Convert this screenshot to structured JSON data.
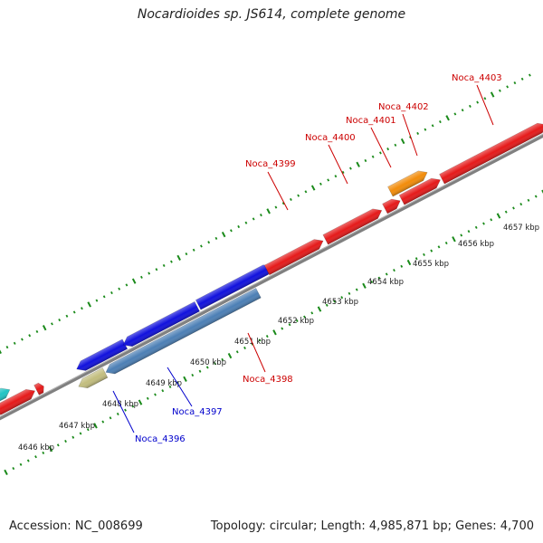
{
  "title": "Nocardioides sp. JS614, complete genome",
  "footer": {
    "accession": "Accession: NC_008699",
    "summary": "Topology: circular; Length: 4,985,871 bp; Genes: 4,700"
  },
  "colors": {
    "backbone": "#808080",
    "tick": "#1a8a1a",
    "forward_label": "#cc0000",
    "reverse_label": "#0000cc",
    "ruler_text": "#222222"
  },
  "ruler": {
    "unit": "kbp",
    "labels": [
      "4646 kbp",
      "4647 kbp",
      "4648 kbp",
      "4649 kbp",
      "4650 kbp",
      "4651 kbp",
      "4652 kbp",
      "4653 kbp",
      "4654 kbp",
      "4655 kbp",
      "4656 kbp",
      "4657 kbp"
    ]
  },
  "genes": [
    {
      "label": "Noca_4396",
      "strand": "reverse",
      "color": "#c2bd7e"
    },
    {
      "label": "Noca_4397",
      "strand": "reverse",
      "color": "#4c7fb5"
    },
    {
      "label": "Noca_4398",
      "strand": "forward",
      "color": "#1111dd"
    },
    {
      "label": "Noca_4399",
      "strand": "forward",
      "color": "#e51a1a"
    },
    {
      "label": "Noca_4400",
      "strand": "forward",
      "color": "#e51a1a"
    },
    {
      "label": "Noca_4401",
      "strand": "forward",
      "color": "#e51a1a"
    },
    {
      "label": "Noca_4402",
      "strand": "forward",
      "color": "#f28c0a"
    },
    {
      "label": "Noca_4403",
      "strand": "forward",
      "color": "#e51a1a"
    }
  ]
}
